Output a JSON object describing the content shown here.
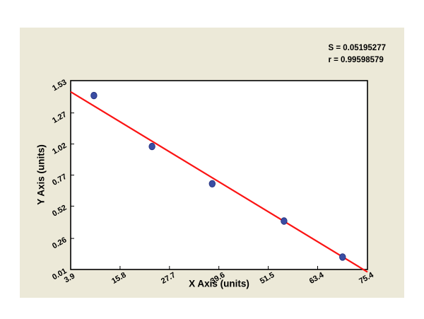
{
  "chart_data": {
    "type": "scatter",
    "title": "",
    "xlabel": "X Axis (units)",
    "ylabel": "Y Axis (units)",
    "xlim": [
      3.9,
      75.4
    ],
    "ylim": [
      0.01,
      1.53
    ],
    "x_ticks": [
      3.9,
      15.8,
      27.7,
      39.6,
      51.5,
      63.4,
      75.4
    ],
    "x_tick_labels": [
      "3.9",
      "15.8",
      "27.7",
      "39.6",
      "51.5",
      "63.4",
      "75.4"
    ],
    "y_ticks": [
      0.01,
      0.26,
      0.52,
      0.77,
      1.02,
      1.27,
      1.53
    ],
    "y_tick_labels": [
      "0.01",
      "0.26",
      "0.52",
      "0.77",
      "1.02",
      "1.27",
      "1.53"
    ],
    "grid": false,
    "legend_position": "none",
    "points": [
      {
        "x": 9.5,
        "y": 1.41
      },
      {
        "x": 23.5,
        "y": 1.0
      },
      {
        "x": 38.0,
        "y": 0.7
      },
      {
        "x": 55.3,
        "y": 0.4
      },
      {
        "x": 69.4,
        "y": 0.11
      }
    ],
    "fit_line": {
      "x1": 3.9,
      "y1": 1.44,
      "x2": 75.4,
      "y2": -0.01
    },
    "annotations": [
      "S = 0.05195277",
      "r = 0.99598579"
    ],
    "colors": {
      "panel_background": "#ece9d8",
      "plot_background": "#ffffff",
      "point_fill": "#3a4da3",
      "point_stroke": "#222e78",
      "fit_line": "#fb1414",
      "axis": "#000000",
      "text": "#000000"
    }
  }
}
